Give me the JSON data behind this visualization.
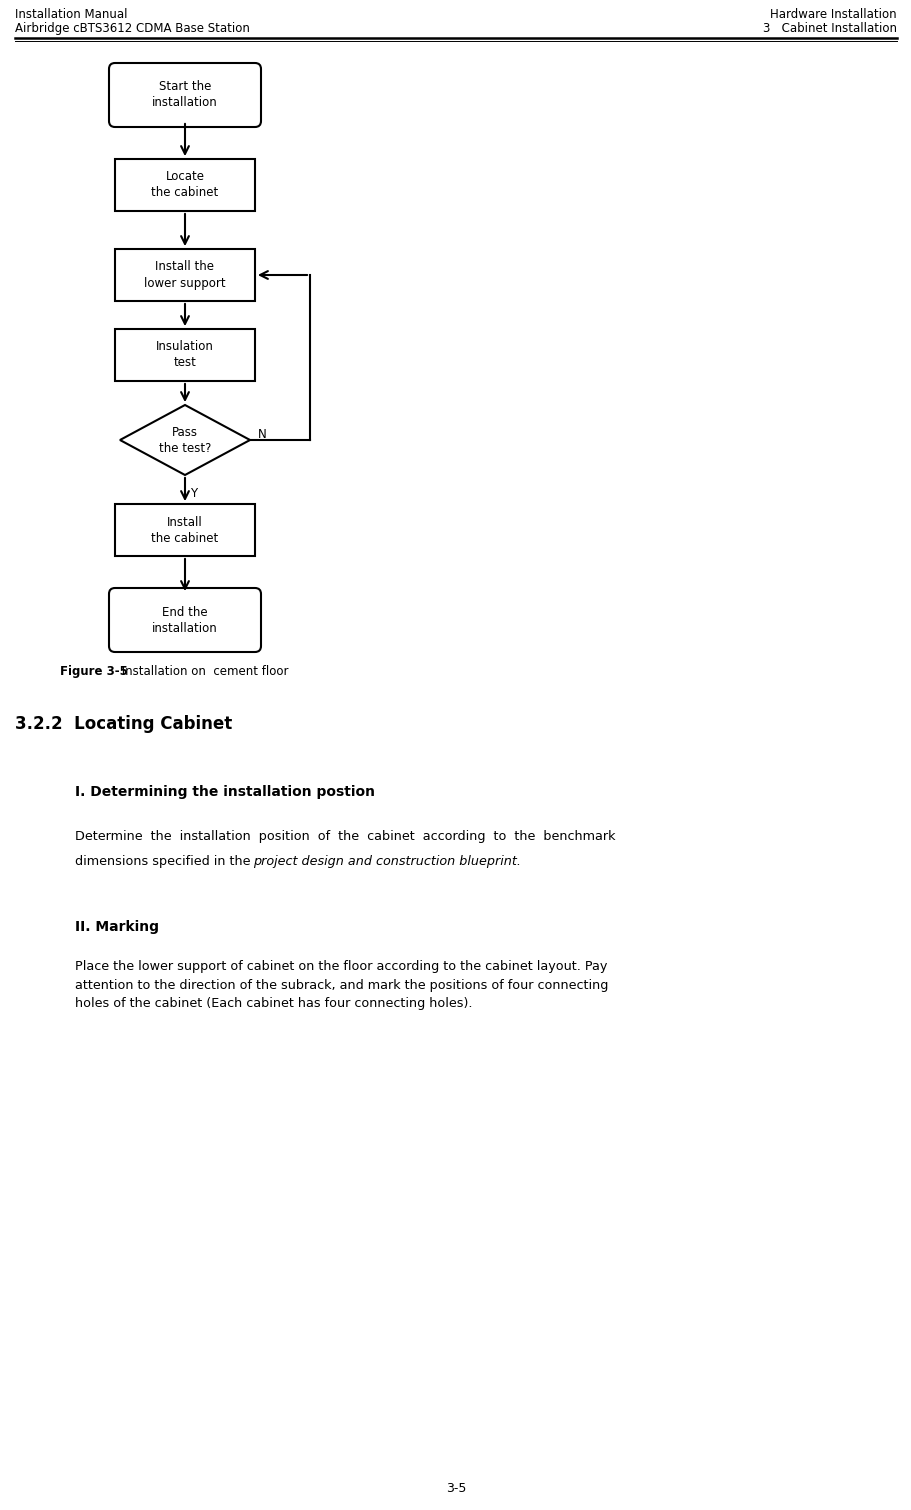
{
  "header_left_line1": "Installation Manual",
  "header_left_line2": "Airbridge cBTS3612 CDMA Base Station",
  "header_right_line1": "Hardware Installation",
  "header_right_line2": "3   Cabinet Installation",
  "figure_caption_bold": "Figure 3-5",
  "figure_caption_normal": " Installation on  cement floor",
  "section_title": "3.2.2  Locating Cabinet",
  "subsection1_title": "I. Determining the installation postion",
  "subsection1_body1": "Determine  the  installation  position  of  the  cabinet  according  to  the  benchmark",
  "subsection1_body2": "dimensions specified in the ",
  "subsection1_italic": "project design and construction blueprint.",
  "subsection2_title": "II. Marking",
  "subsection2_body": "Place the lower support of cabinet on the floor according to the cabinet layout. Pay\nattention to the direction of the subrack, and mark the positions of four connecting\nholes of the cabinet (Each cabinet has four connecting holes).",
  "page_number": "3-5",
  "bg_color": "#ffffff",
  "box_facecolor": "#ffffff",
  "box_edgecolor": "#000000",
  "text_color": "#000000"
}
